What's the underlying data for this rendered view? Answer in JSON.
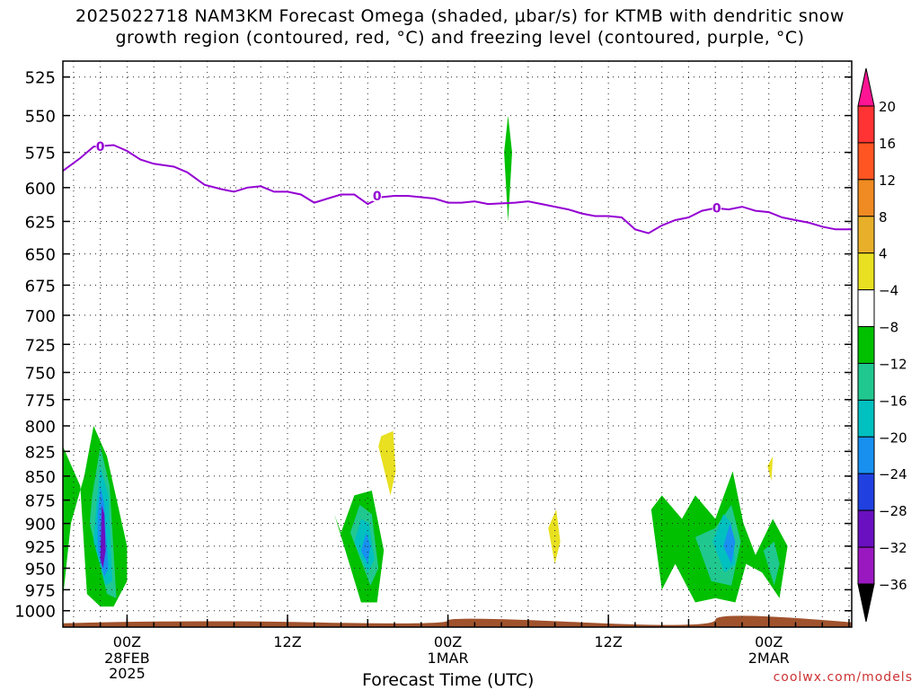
{
  "title": {
    "line1": "2025022718 NAM3KM Forecast Omega (shaded, μbar/s) for KTMB with dendritic snow",
    "line2": "growth region (contoured, red, °C) and freezing level (contoured, purple, °C)"
  },
  "footer": {
    "credit": "coolwx.com/models"
  },
  "chart_data": {
    "type": "area",
    "xlabel": "Forecast Time (UTC)",
    "x_start": "2025-02-27 18Z",
    "x_end": "2025-03-02 12Z",
    "x_ticks": [
      {
        "hours": 6,
        "label": "00Z",
        "sub1": "28FEB",
        "sub2": "2025"
      },
      {
        "hours": 18,
        "label": "12Z",
        "sub1": "",
        "sub2": ""
      },
      {
        "hours": 30,
        "label": "00Z",
        "sub1": "1MAR",
        "sub2": ""
      },
      {
        "hours": 42,
        "label": "12Z",
        "sub1": "",
        "sub2": ""
      },
      {
        "hours": 54,
        "label": "00Z",
        "sub1": "2MAR",
        "sub2": ""
      }
    ],
    "x_range_hours": [
      1.2,
      60.2
    ],
    "y_label_unit": "mb",
    "y_ticks": [
      525,
      550,
      575,
      600,
      625,
      650,
      675,
      700,
      725,
      750,
      775,
      800,
      825,
      850,
      875,
      900,
      925,
      950,
      975,
      1000
    ],
    "y_range": [
      515,
      1020
    ],
    "y_scale": "log-pressure",
    "grid": "dotted",
    "colorbar": {
      "labels": [
        "20",
        "16",
        "12",
        "8",
        "4",
        "−4",
        "−8",
        "−12",
        "−16",
        "−20",
        "−24",
        "−28",
        "−32",
        "−36"
      ],
      "colors": [
        "#ff1493",
        "#ff3333",
        "#ff5522",
        "#f08a22",
        "#e8b02a",
        "#e8e020",
        "#ffffff",
        "#00c000",
        "#20c890",
        "#00c0c0",
        "#1890f0",
        "#2040e0",
        "#6a10c0",
        "#9a18c0",
        "#a0a0a0",
        "#000000"
      ]
    },
    "freezing_level": {
      "color": "#9400d3",
      "label": "0",
      "points": [
        [
          1.2,
          588
        ],
        [
          2.5,
          579
        ],
        [
          3.5,
          571
        ],
        [
          5,
          570
        ],
        [
          6,
          574
        ],
        [
          7,
          580
        ],
        [
          8,
          583
        ],
        [
          9.5,
          585
        ],
        [
          10.5,
          589
        ],
        [
          11.8,
          598
        ],
        [
          13,
          601
        ],
        [
          14,
          603
        ],
        [
          15,
          600
        ],
        [
          16,
          599
        ],
        [
          17,
          603
        ],
        [
          18,
          603
        ],
        [
          19,
          605
        ],
        [
          20,
          611
        ],
        [
          21,
          608
        ],
        [
          22,
          605
        ],
        [
          23,
          605
        ],
        [
          24,
          612
        ],
        [
          25,
          607
        ],
        [
          26,
          606
        ],
        [
          27,
          606
        ],
        [
          28,
          607
        ],
        [
          29,
          608
        ],
        [
          30,
          611
        ],
        [
          31,
          611
        ],
        [
          32,
          610
        ],
        [
          33,
          612
        ],
        [
          35,
          611
        ],
        [
          36,
          610
        ],
        [
          37,
          612
        ],
        [
          38,
          614
        ],
        [
          39,
          616
        ],
        [
          40,
          619
        ],
        [
          41,
          621
        ],
        [
          42,
          621
        ],
        [
          43,
          622
        ],
        [
          44,
          631
        ],
        [
          45,
          634
        ],
        [
          46,
          628
        ],
        [
          47,
          624
        ],
        [
          48,
          622
        ],
        [
          49,
          617
        ],
        [
          50,
          615
        ],
        [
          51,
          616
        ],
        [
          52,
          614
        ],
        [
          53,
          617
        ],
        [
          54,
          618
        ],
        [
          55,
          622
        ],
        [
          56,
          624
        ],
        [
          57,
          626
        ],
        [
          58,
          629
        ],
        [
          59,
          631
        ],
        [
          60.2,
          631
        ]
      ],
      "label_positions": [
        [
          4,
          571
        ],
        [
          24.7,
          606
        ],
        [
          50.1,
          615
        ]
      ]
    },
    "terrain": {
      "color": "#a0522d",
      "top_mb": 1012
    },
    "omega_regions": [
      {
        "value": -8,
        "color": "#00c000",
        "x": [
          1.2,
          1.2,
          2.5,
          3,
          4,
          5,
          6,
          6,
          4.5,
          3.5,
          2.8,
          1.8
        ],
        "y": [
          985,
          820,
          860,
          980,
          995,
          995,
          965,
          925,
          830,
          800,
          850,
          900
        ]
      },
      {
        "value": -12,
        "color": "#20c890",
        "x": [
          3.2,
          4.5,
          5.2,
          4.7,
          4,
          3.4
        ],
        "y": [
          900,
          980,
          985,
          860,
          820,
          870
        ]
      },
      {
        "value": -16,
        "color": "#00c0c0",
        "x": [
          3.5,
          4.4,
          4.9,
          4.6,
          4,
          3.7
        ],
        "y": [
          920,
          970,
          965,
          870,
          840,
          880
        ]
      },
      {
        "value": -20,
        "color": "#1890f0",
        "x": [
          3.8,
          4.3,
          4.6,
          4.3,
          4,
          3.8
        ],
        "y": [
          930,
          960,
          950,
          880,
          860,
          890
        ]
      },
      {
        "value": -28,
        "color": "#6a10c0",
        "x": [
          4,
          4.2,
          4.4,
          4.3,
          4.1
        ],
        "y": [
          940,
          950,
          930,
          890,
          880
        ]
      },
      {
        "value": -8,
        "color": "#00c000",
        "x": [
          21.5,
          23.5,
          24.7,
          25.2,
          24.3,
          23,
          22
        ],
        "y": [
          890,
          990,
          990,
          930,
          865,
          870,
          910
        ]
      },
      {
        "value": -12,
        "color": "#20c890",
        "x": [
          22.7,
          24.2,
          24.8,
          24.3,
          23.4
        ],
        "y": [
          910,
          970,
          950,
          890,
          880
        ]
      },
      {
        "value": -16,
        "color": "#00c0c0",
        "x": [
          23,
          24,
          24.5,
          24.1,
          23.5
        ],
        "y": [
          920,
          955,
          940,
          900,
          895
        ]
      },
      {
        "value": -20,
        "color": "#1890f0",
        "x": [
          23.5,
          24,
          24.2,
          23.9
        ],
        "y": [
          930,
          945,
          925,
          910
        ]
      },
      {
        "value": 4,
        "color": "#e8e020",
        "x": [
          24.8,
          25.7,
          26.1,
          25.9,
          25
        ],
        "y": [
          820,
          870,
          845,
          805,
          810
        ]
      },
      {
        "value": 4,
        "color": "#e8e020",
        "x": [
          37.5,
          38,
          38.4,
          38.1
        ],
        "y": [
          905,
          945,
          920,
          885
        ]
      },
      {
        "value": -8,
        "color": "#00c000",
        "x": [
          34.2,
          34.5,
          34.8,
          34.5
        ],
        "y": [
          575,
          625,
          575,
          550
        ]
      },
      {
        "value": -8,
        "color": "#00c000",
        "x": [
          45.2,
          46,
          47,
          48.5,
          50,
          51.5,
          52.3,
          53.5,
          54.8,
          55.4,
          54.3,
          53,
          52.1,
          51.3,
          50,
          48.5,
          47.5,
          46
        ],
        "y": [
          885,
          975,
          945,
          990,
          985,
          990,
          945,
          955,
          985,
          925,
          895,
          935,
          900,
          845,
          895,
          870,
          895,
          870
        ]
      },
      {
        "value": -12,
        "color": "#20c890",
        "x": [
          48.5,
          49.7,
          51.2,
          51.9,
          51.2,
          50
        ],
        "y": [
          915,
          965,
          970,
          920,
          880,
          905
        ]
      },
      {
        "value": -16,
        "color": "#00c0c0",
        "x": [
          49.8,
          50.7,
          51.5,
          51.2,
          50.6
        ],
        "y": [
          920,
          955,
          945,
          900,
          890
        ]
      },
      {
        "value": -20,
        "color": "#1890f0",
        "x": [
          50.6,
          51.2,
          51.5,
          51.1
        ],
        "y": [
          925,
          945,
          920,
          900
        ]
      },
      {
        "value": -12,
        "color": "#20c890",
        "x": [
          53.6,
          54.4,
          54.8,
          54.4
        ],
        "y": [
          930,
          970,
          945,
          920
        ]
      },
      {
        "value": 4,
        "color": "#e8e020",
        "x": [
          53.9,
          54.2,
          54.3
        ],
        "y": [
          840,
          855,
          830
        ]
      }
    ]
  }
}
